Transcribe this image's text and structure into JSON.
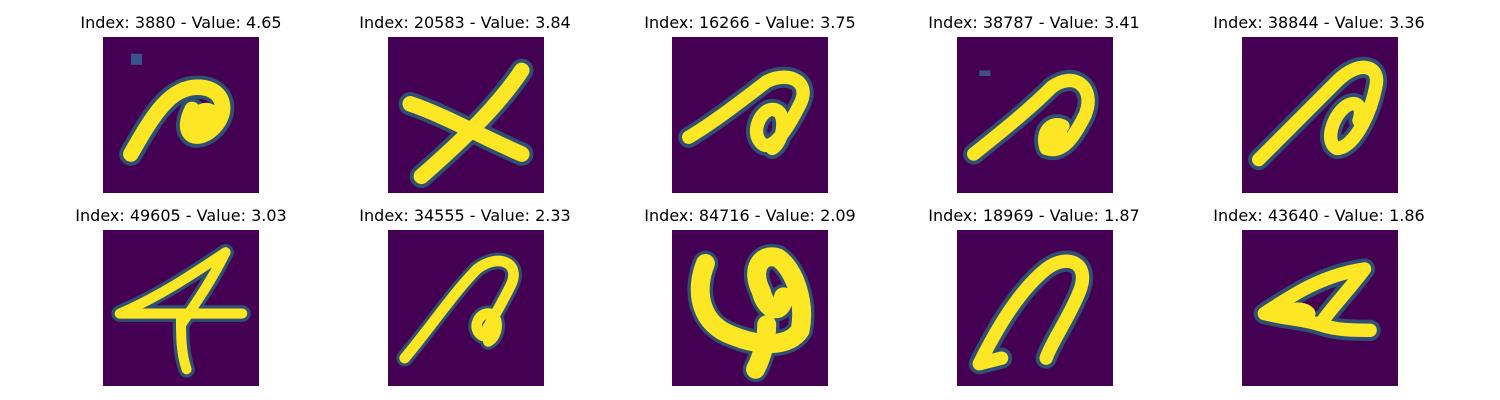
{
  "panels": [
    {
      "title": "Index: 3880 - Value: 4.65"
    },
    {
      "title": "Index: 20583 - Value: 3.84"
    },
    {
      "title": "Index: 16266 - Value: 3.75"
    },
    {
      "title": "Index: 38787 - Value: 3.41"
    },
    {
      "title": "Index: 38844 - Value: 3.36"
    },
    {
      "title": "Index: 49605 - Value: 3.03"
    },
    {
      "title": "Index: 34555 - Value: 2.33"
    },
    {
      "title": "Index: 84716 - Value: 2.09"
    },
    {
      "title": "Index: 18969 - Value: 1.87"
    },
    {
      "title": "Index: 43640 - Value: 1.86"
    }
  ],
  "colors": {
    "background": "#440154",
    "stroke_core": "#fde725",
    "stroke_edge": "#21918c"
  }
}
